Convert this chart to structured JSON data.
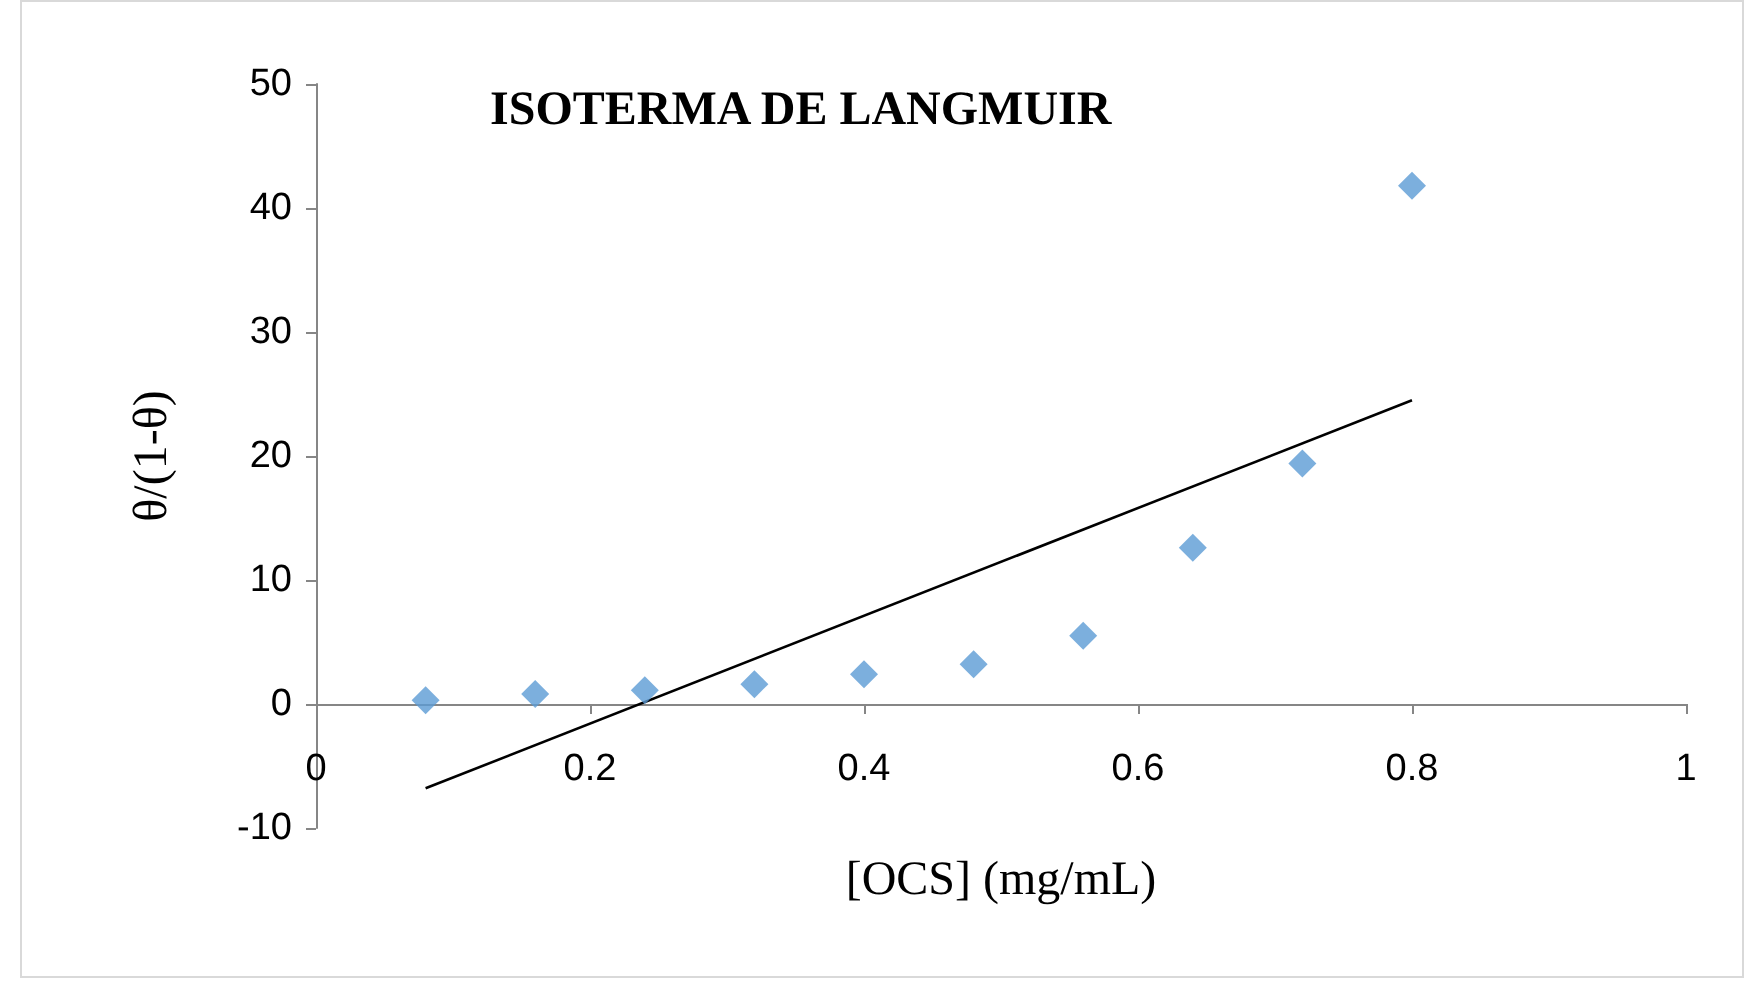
{
  "chart_data": {
    "type": "scatter",
    "title": "ISOTERMA DE LANGMUIR",
    "xlabel": "[OCS] (mg/mL)",
    "ylabel": "θ/(1-θ)",
    "x": [
      0.08,
      0.16,
      0.24,
      0.32,
      0.4,
      0.48,
      0.56,
      0.64,
      0.72,
      0.8
    ],
    "series": [
      {
        "color": "#5b9bd5",
        "marker": "diamond",
        "values": [
          0.3,
          0.8,
          1.1,
          1.6,
          2.4,
          3.2,
          5.5,
          12.6,
          19.4,
          41.8
        ]
      },
      {
        "type": "line",
        "color": "#000000",
        "marker": "none",
        "x": [
          0.08,
          0.8
        ],
        "values": [
          -6.8,
          24.5
        ]
      }
    ],
    "xlim": [
      0,
      1
    ],
    "xticks": [
      0,
      0.2,
      0.4,
      0.6,
      0.8,
      1
    ],
    "ylim": [
      -10,
      50
    ],
    "yticks": [
      -10,
      0,
      10,
      20,
      30,
      40,
      50
    ],
    "grid": false
  }
}
